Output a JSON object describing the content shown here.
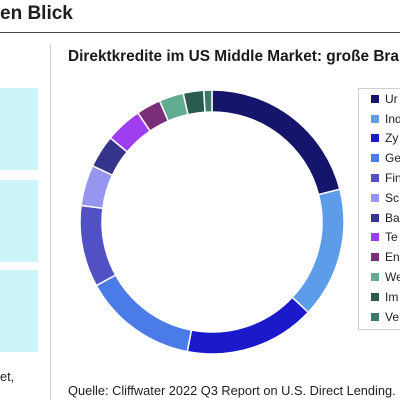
{
  "header": {
    "title": "en Blick"
  },
  "left_column": {
    "box_color": "#cdf4fb",
    "footer_text": "et,"
  },
  "chart_data": {
    "type": "pie",
    "variant": "donut",
    "title": "Direktkredite im US Middle Market: große Bra",
    "categories": [
      "Ur",
      "Ind",
      "Zy",
      "Ge",
      "Fin",
      "Sc",
      "Ba",
      "Te",
      "En",
      "We",
      "Im",
      "Ve"
    ],
    "values": [
      21,
      16,
      16,
      14,
      10,
      5,
      4,
      4.5,
      3,
      3,
      2.5,
      1
    ],
    "colors": [
      "#15156b",
      "#5c9ce8",
      "#1a1acb",
      "#4b7be6",
      "#5151c4",
      "#9696f1",
      "#35358c",
      "#9f3df0",
      "#7a2d79",
      "#62ac91",
      "#2b5a4e",
      "#3e7a6a"
    ],
    "legend": "right"
  },
  "footer": {
    "source": "Quelle: Cliffwater 2022 Q3 Report on U.S. Direct Lending."
  }
}
